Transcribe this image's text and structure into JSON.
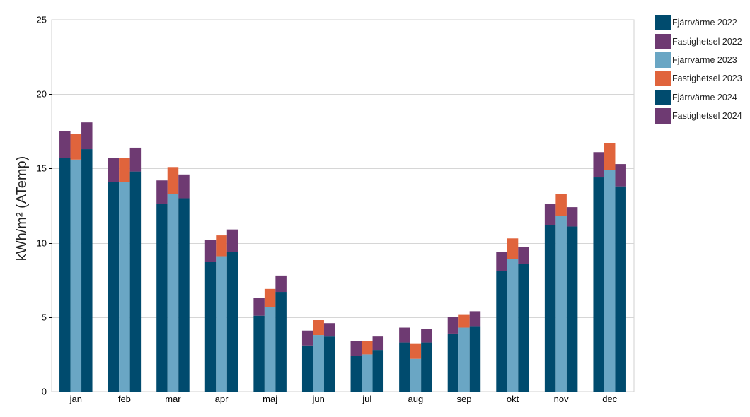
{
  "chart_data": {
    "type": "bar",
    "stacked": true,
    "grouped": true,
    "categories": [
      "jan",
      "feb",
      "mar",
      "apr",
      "maj",
      "jun",
      "jul",
      "aug",
      "sep",
      "okt",
      "nov",
      "dec"
    ],
    "ylabel": "kWh/m² (ATemp)",
    "ylim": [
      0,
      25
    ],
    "yticks": [
      0,
      5,
      10,
      15,
      20,
      25
    ],
    "grid": true,
    "legend_position": "right",
    "groups": [
      {
        "year": "2022",
        "series": [
          {
            "name": "Fjärrvärme 2022",
            "color": "#004b6e",
            "values": [
              15.7,
              14.1,
              12.6,
              8.7,
              5.1,
              3.1,
              2.4,
              3.3,
              3.9,
              8.1,
              11.2,
              14.4
            ]
          },
          {
            "name": "Fastighetsel 2022",
            "color": "#6e3a72",
            "values": [
              1.8,
              1.6,
              1.6,
              1.5,
              1.2,
              1.0,
              1.0,
              1.0,
              1.1,
              1.3,
              1.4,
              1.7
            ]
          }
        ]
      },
      {
        "year": "2023",
        "series": [
          {
            "name": "Fjärrvärme 2023",
            "color": "#6aa6c4",
            "values": [
              15.6,
              14.1,
              13.3,
              9.1,
              5.7,
              3.8,
              2.5,
              2.2,
              4.3,
              8.9,
              11.8,
              14.9
            ]
          },
          {
            "name": "Fastighetsel 2023",
            "color": "#e0643c",
            "values": [
              1.7,
              1.6,
              1.8,
              1.4,
              1.2,
              1.0,
              0.9,
              1.0,
              0.9,
              1.4,
              1.5,
              1.8
            ]
          }
        ]
      },
      {
        "year": "2024",
        "series": [
          {
            "name": "Fjärrvärme 2024",
            "color": "#004b6e",
            "values": [
              16.3,
              14.8,
              13.0,
              9.4,
              6.7,
              3.7,
              2.8,
              3.3,
              4.4,
              8.6,
              11.1,
              13.8
            ]
          },
          {
            "name": "Fastighetsel 2024",
            "color": "#6e3a72",
            "values": [
              1.8,
              1.6,
              1.6,
              1.5,
              1.1,
              0.9,
              0.9,
              0.9,
              1.0,
              1.1,
              1.3,
              1.5
            ]
          }
        ]
      }
    ]
  }
}
